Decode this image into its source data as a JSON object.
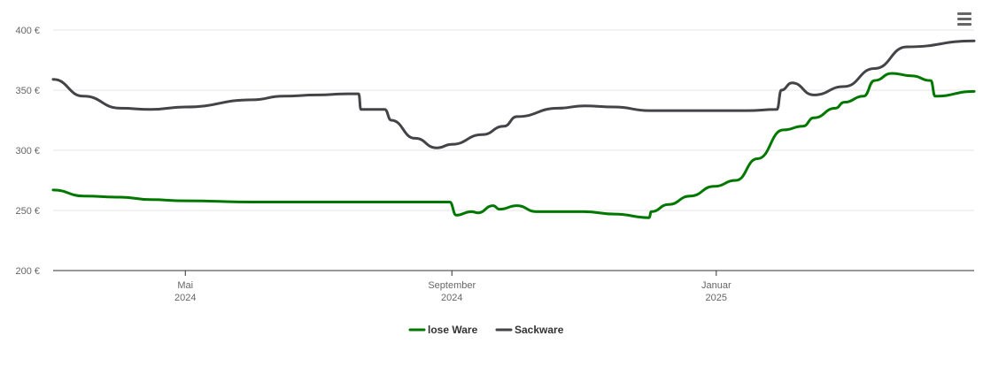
{
  "menu": {
    "icon": "hamburger-menu-icon"
  },
  "chart_data": {
    "type": "line",
    "title": "",
    "xlabel": "",
    "ylabel": "",
    "x_range": [
      "2024-03-01",
      "2025-04-30"
    ],
    "ylim": [
      200,
      400
    ],
    "y_ticks": [
      {
        "value": 200,
        "label": "200 €"
      },
      {
        "value": 250,
        "label": "250 €"
      },
      {
        "value": 300,
        "label": "300 €"
      },
      {
        "value": 350,
        "label": "350 €"
      },
      {
        "value": 400,
        "label": "400 €"
      }
    ],
    "x_ticks": [
      {
        "date": "2024-05-01",
        "label1": "Mai",
        "label2": "2024"
      },
      {
        "date": "2024-09-01",
        "label1": "September",
        "label2": "2024"
      },
      {
        "date": "2025-01-01",
        "label1": "Januar",
        "label2": "2025"
      }
    ],
    "grid": true,
    "legend_position": "bottom-center",
    "series": [
      {
        "name": "lose Ware",
        "color": "#007800",
        "points": [
          [
            "2024-03-01",
            267
          ],
          [
            "2024-03-15",
            262
          ],
          [
            "2024-04-01",
            261
          ],
          [
            "2024-04-15",
            259
          ],
          [
            "2024-05-01",
            258
          ],
          [
            "2024-06-01",
            257
          ],
          [
            "2024-07-01",
            257
          ],
          [
            "2024-08-01",
            257
          ],
          [
            "2024-08-31",
            257
          ],
          [
            "2024-09-03",
            246
          ],
          [
            "2024-09-10",
            249
          ],
          [
            "2024-09-13",
            248
          ],
          [
            "2024-09-20",
            254
          ],
          [
            "2024-09-23",
            251
          ],
          [
            "2024-10-01",
            254
          ],
          [
            "2024-10-10",
            249
          ],
          [
            "2024-11-01",
            249
          ],
          [
            "2024-11-15",
            247
          ],
          [
            "2024-12-01",
            244
          ],
          [
            "2024-12-02",
            249
          ],
          [
            "2024-12-10",
            255
          ],
          [
            "2024-12-20",
            262
          ],
          [
            "2024-12-31",
            270
          ],
          [
            "2025-01-10",
            275
          ],
          [
            "2025-01-20",
            293
          ],
          [
            "2025-02-01",
            317
          ],
          [
            "2025-02-10",
            320
          ],
          [
            "2025-02-15",
            327
          ],
          [
            "2025-02-25",
            335
          ],
          [
            "2025-03-01",
            340
          ],
          [
            "2025-03-10",
            345
          ],
          [
            "2025-03-15",
            358
          ],
          [
            "2025-03-23",
            364
          ],
          [
            "2025-04-01",
            362
          ],
          [
            "2025-04-10",
            358
          ],
          [
            "2025-04-12",
            345
          ],
          [
            "2025-04-30",
            349
          ]
        ]
      },
      {
        "name": "Sackware",
        "color": "#434348",
        "points": [
          [
            "2024-03-01",
            359
          ],
          [
            "2024-03-15",
            345
          ],
          [
            "2024-04-01",
            335
          ],
          [
            "2024-04-15",
            334
          ],
          [
            "2024-05-01",
            336
          ],
          [
            "2024-06-01",
            342
          ],
          [
            "2024-06-15",
            345
          ],
          [
            "2024-07-01",
            346
          ],
          [
            "2024-07-15",
            347
          ],
          [
            "2024-07-20",
            347
          ],
          [
            "2024-07-21",
            334
          ],
          [
            "2024-08-01",
            334
          ],
          [
            "2024-08-04",
            325
          ],
          [
            "2024-08-15",
            310
          ],
          [
            "2024-08-25",
            302
          ],
          [
            "2024-09-01",
            305
          ],
          [
            "2024-09-15",
            313
          ],
          [
            "2024-09-25",
            320
          ],
          [
            "2024-10-01",
            328
          ],
          [
            "2024-10-20",
            335
          ],
          [
            "2024-11-01",
            337
          ],
          [
            "2024-11-15",
            336
          ],
          [
            "2024-12-01",
            333
          ],
          [
            "2024-12-31",
            333
          ],
          [
            "2025-01-15",
            333
          ],
          [
            "2025-01-29",
            334
          ],
          [
            "2025-01-31",
            350
          ],
          [
            "2025-02-05",
            356
          ],
          [
            "2025-02-15",
            346
          ],
          [
            "2025-03-01",
            353
          ],
          [
            "2025-03-15",
            368
          ],
          [
            "2025-03-30",
            386
          ],
          [
            "2025-04-30",
            391
          ]
        ]
      }
    ]
  }
}
